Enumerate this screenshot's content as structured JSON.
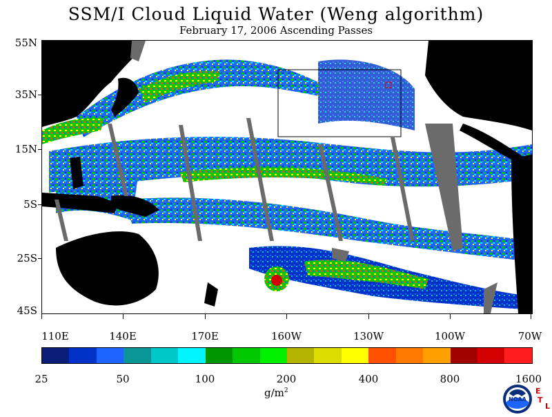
{
  "title": "SSM/I Cloud Liquid Water (Weng algorithm)",
  "subtitle": "February 17, 2006  Ascending Passes",
  "map": {
    "region": "Pacific Ocean",
    "lon_range": [
      "110E",
      "70W"
    ],
    "lat_range": [
      "45S",
      "55N"
    ],
    "land_color": "#000000",
    "no_data_color": "#6b6b6b",
    "clear_color": "#ffffff",
    "has_inset_box": true
  },
  "lat_labels": [
    "55N",
    "35N",
    "15N",
    "5S",
    "25S",
    "45S"
  ],
  "lon_labels": [
    "110E",
    "140E",
    "170E",
    "160W",
    "130W",
    "100W",
    "70W"
  ],
  "colorbar": {
    "colors": [
      "#0a1e78",
      "#0032c8",
      "#1e64ff",
      "#0a9696",
      "#00c8c8",
      "#00f5ff",
      "#009600",
      "#00c800",
      "#00f000",
      "#b4b400",
      "#dcdc00",
      "#ffff00",
      "#ff5000",
      "#ff7800",
      "#ffa000",
      "#a00000",
      "#d20000",
      "#ff1e1e"
    ],
    "tick_labels": [
      "25",
      "50",
      "100",
      "200",
      "400",
      "800",
      "1600"
    ],
    "units": "g/m",
    "units_exp": "2"
  },
  "logo": {
    "icon": "noaa-logo-icon",
    "text": "NOAA",
    "lab_letters": [
      "E",
      "T",
      "L"
    ]
  }
}
